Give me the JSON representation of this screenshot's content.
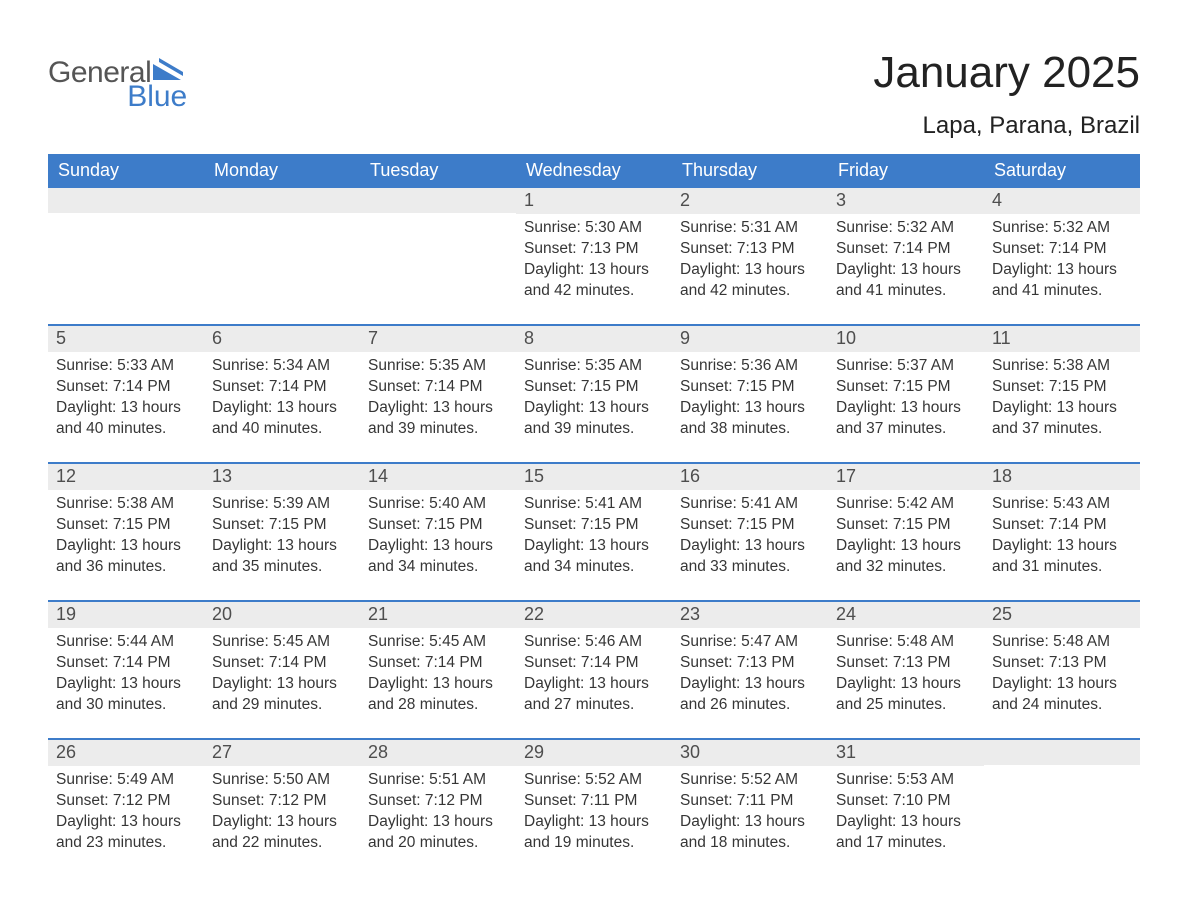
{
  "brand": {
    "word1": "General",
    "word2": "Blue",
    "accent": "#3d7cc9"
  },
  "title": "January 2025",
  "location": "Lapa, Parana, Brazil",
  "colors": {
    "header_bg": "#3d7cc9",
    "divider": "#3d7cc9",
    "daynum_bg": "#ececec",
    "page_bg": "#ffffff",
    "text": "#2b2b2b"
  },
  "days_of_week": [
    "Sunday",
    "Monday",
    "Tuesday",
    "Wednesday",
    "Thursday",
    "Friday",
    "Saturday"
  ],
  "weeks": [
    [
      {
        "n": "",
        "sunrise": "",
        "sunset": "",
        "daylight": ""
      },
      {
        "n": "",
        "sunrise": "",
        "sunset": "",
        "daylight": ""
      },
      {
        "n": "",
        "sunrise": "",
        "sunset": "",
        "daylight": ""
      },
      {
        "n": "1",
        "sunrise": "Sunrise: 5:30 AM",
        "sunset": "Sunset: 7:13 PM",
        "daylight": "Daylight: 13 hours and 42 minutes."
      },
      {
        "n": "2",
        "sunrise": "Sunrise: 5:31 AM",
        "sunset": "Sunset: 7:13 PM",
        "daylight": "Daylight: 13 hours and 42 minutes."
      },
      {
        "n": "3",
        "sunrise": "Sunrise: 5:32 AM",
        "sunset": "Sunset: 7:14 PM",
        "daylight": "Daylight: 13 hours and 41 minutes."
      },
      {
        "n": "4",
        "sunrise": "Sunrise: 5:32 AM",
        "sunset": "Sunset: 7:14 PM",
        "daylight": "Daylight: 13 hours and 41 minutes."
      }
    ],
    [
      {
        "n": "5",
        "sunrise": "Sunrise: 5:33 AM",
        "sunset": "Sunset: 7:14 PM",
        "daylight": "Daylight: 13 hours and 40 minutes."
      },
      {
        "n": "6",
        "sunrise": "Sunrise: 5:34 AM",
        "sunset": "Sunset: 7:14 PM",
        "daylight": "Daylight: 13 hours and 40 minutes."
      },
      {
        "n": "7",
        "sunrise": "Sunrise: 5:35 AM",
        "sunset": "Sunset: 7:14 PM",
        "daylight": "Daylight: 13 hours and 39 minutes."
      },
      {
        "n": "8",
        "sunrise": "Sunrise: 5:35 AM",
        "sunset": "Sunset: 7:15 PM",
        "daylight": "Daylight: 13 hours and 39 minutes."
      },
      {
        "n": "9",
        "sunrise": "Sunrise: 5:36 AM",
        "sunset": "Sunset: 7:15 PM",
        "daylight": "Daylight: 13 hours and 38 minutes."
      },
      {
        "n": "10",
        "sunrise": "Sunrise: 5:37 AM",
        "sunset": "Sunset: 7:15 PM",
        "daylight": "Daylight: 13 hours and 37 minutes."
      },
      {
        "n": "11",
        "sunrise": "Sunrise: 5:38 AM",
        "sunset": "Sunset: 7:15 PM",
        "daylight": "Daylight: 13 hours and 37 minutes."
      }
    ],
    [
      {
        "n": "12",
        "sunrise": "Sunrise: 5:38 AM",
        "sunset": "Sunset: 7:15 PM",
        "daylight": "Daylight: 13 hours and 36 minutes."
      },
      {
        "n": "13",
        "sunrise": "Sunrise: 5:39 AM",
        "sunset": "Sunset: 7:15 PM",
        "daylight": "Daylight: 13 hours and 35 minutes."
      },
      {
        "n": "14",
        "sunrise": "Sunrise: 5:40 AM",
        "sunset": "Sunset: 7:15 PM",
        "daylight": "Daylight: 13 hours and 34 minutes."
      },
      {
        "n": "15",
        "sunrise": "Sunrise: 5:41 AM",
        "sunset": "Sunset: 7:15 PM",
        "daylight": "Daylight: 13 hours and 34 minutes."
      },
      {
        "n": "16",
        "sunrise": "Sunrise: 5:41 AM",
        "sunset": "Sunset: 7:15 PM",
        "daylight": "Daylight: 13 hours and 33 minutes."
      },
      {
        "n": "17",
        "sunrise": "Sunrise: 5:42 AM",
        "sunset": "Sunset: 7:15 PM",
        "daylight": "Daylight: 13 hours and 32 minutes."
      },
      {
        "n": "18",
        "sunrise": "Sunrise: 5:43 AM",
        "sunset": "Sunset: 7:14 PM",
        "daylight": "Daylight: 13 hours and 31 minutes."
      }
    ],
    [
      {
        "n": "19",
        "sunrise": "Sunrise: 5:44 AM",
        "sunset": "Sunset: 7:14 PM",
        "daylight": "Daylight: 13 hours and 30 minutes."
      },
      {
        "n": "20",
        "sunrise": "Sunrise: 5:45 AM",
        "sunset": "Sunset: 7:14 PM",
        "daylight": "Daylight: 13 hours and 29 minutes."
      },
      {
        "n": "21",
        "sunrise": "Sunrise: 5:45 AM",
        "sunset": "Sunset: 7:14 PM",
        "daylight": "Daylight: 13 hours and 28 minutes."
      },
      {
        "n": "22",
        "sunrise": "Sunrise: 5:46 AM",
        "sunset": "Sunset: 7:14 PM",
        "daylight": "Daylight: 13 hours and 27 minutes."
      },
      {
        "n": "23",
        "sunrise": "Sunrise: 5:47 AM",
        "sunset": "Sunset: 7:13 PM",
        "daylight": "Daylight: 13 hours and 26 minutes."
      },
      {
        "n": "24",
        "sunrise": "Sunrise: 5:48 AM",
        "sunset": "Sunset: 7:13 PM",
        "daylight": "Daylight: 13 hours and 25 minutes."
      },
      {
        "n": "25",
        "sunrise": "Sunrise: 5:48 AM",
        "sunset": "Sunset: 7:13 PM",
        "daylight": "Daylight: 13 hours and 24 minutes."
      }
    ],
    [
      {
        "n": "26",
        "sunrise": "Sunrise: 5:49 AM",
        "sunset": "Sunset: 7:12 PM",
        "daylight": "Daylight: 13 hours and 23 minutes."
      },
      {
        "n": "27",
        "sunrise": "Sunrise: 5:50 AM",
        "sunset": "Sunset: 7:12 PM",
        "daylight": "Daylight: 13 hours and 22 minutes."
      },
      {
        "n": "28",
        "sunrise": "Sunrise: 5:51 AM",
        "sunset": "Sunset: 7:12 PM",
        "daylight": "Daylight: 13 hours and 20 minutes."
      },
      {
        "n": "29",
        "sunrise": "Sunrise: 5:52 AM",
        "sunset": "Sunset: 7:11 PM",
        "daylight": "Daylight: 13 hours and 19 minutes."
      },
      {
        "n": "30",
        "sunrise": "Sunrise: 5:52 AM",
        "sunset": "Sunset: 7:11 PM",
        "daylight": "Daylight: 13 hours and 18 minutes."
      },
      {
        "n": "31",
        "sunrise": "Sunrise: 5:53 AM",
        "sunset": "Sunset: 7:10 PM",
        "daylight": "Daylight: 13 hours and 17 minutes."
      },
      {
        "n": "",
        "sunrise": "",
        "sunset": "",
        "daylight": ""
      }
    ]
  ]
}
